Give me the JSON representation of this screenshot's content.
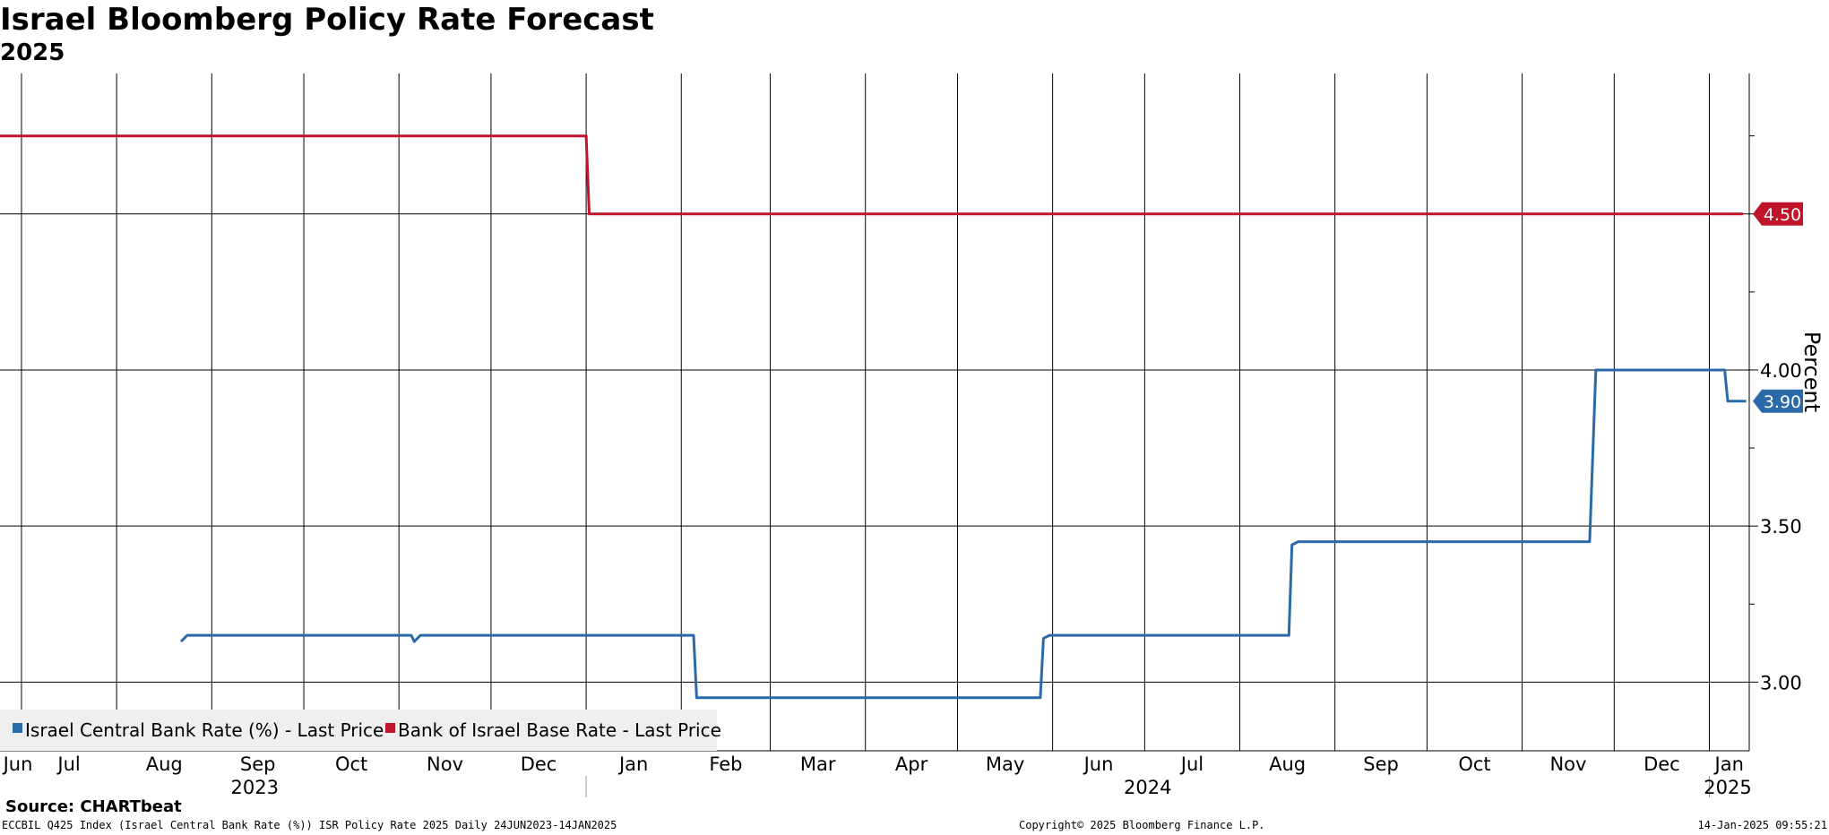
{
  "header": {
    "title": "Israel Bloomberg Policy Rate Forecast",
    "subtitle": "2025"
  },
  "footer": {
    "source": "Source: CHARTbeat",
    "left": "ECCBIL Q425 Index (Israel Central Bank Rate (%)) ISR Policy Rate 2025  Daily 24JUN2023-14JAN2025",
    "center": "Copyright© 2025 Bloomberg Finance L.P.",
    "right": "14-Jan-2025 09:55:21"
  },
  "colors": {
    "series_blue": "#2b6aa8",
    "series_red": "#c0142a",
    "grid": "#000000",
    "legend_bg": "#efefef"
  },
  "chart_data": {
    "type": "line",
    "title": "Israel Bloomberg Policy Rate Forecast",
    "subtitle": "2025",
    "ylabel": "Percent",
    "ylim": [
      2.78,
      4.95
    ],
    "xlim": [
      "2023-06-24",
      "2025-01-14"
    ],
    "y_axis_position": "right",
    "y_ticks": [
      "3.00",
      "3.50",
      "4.00",
      "4.50"
    ],
    "x_ticks": [
      {
        "label": "Jun",
        "date": "2023-06-24"
      },
      {
        "label": "Jul",
        "date": "2023-07-01"
      },
      {
        "label": "Aug",
        "date": "2023-08-01"
      },
      {
        "label": "Sep",
        "date": "2023-09-01"
      },
      {
        "label": "Oct",
        "date": "2023-10-01"
      },
      {
        "label": "Nov",
        "date": "2023-11-01"
      },
      {
        "label": "Dec",
        "date": "2023-12-01"
      },
      {
        "label": "Jan",
        "date": "2024-01-01"
      },
      {
        "label": "Feb",
        "date": "2024-02-01"
      },
      {
        "label": "Mar",
        "date": "2024-03-01"
      },
      {
        "label": "Apr",
        "date": "2024-04-01"
      },
      {
        "label": "May",
        "date": "2024-05-01"
      },
      {
        "label": "Jun",
        "date": "2024-06-01"
      },
      {
        "label": "Jul",
        "date": "2024-07-01"
      },
      {
        "label": "Aug",
        "date": "2024-08-01"
      },
      {
        "label": "Sep",
        "date": "2024-09-01"
      },
      {
        "label": "Oct",
        "date": "2024-10-01"
      },
      {
        "label": "Nov",
        "date": "2024-11-01"
      },
      {
        "label": "Dec",
        "date": "2024-12-01"
      },
      {
        "label": "Jan",
        "date": "2025-01-01"
      }
    ],
    "x_year_labels": [
      {
        "label": "2023",
        "date": "2023-09-15"
      },
      {
        "label": "2024",
        "date": "2024-07-02"
      },
      {
        "label": "2025",
        "date": "2025-01-07"
      }
    ],
    "x_year_dividers": [
      "2024-01-01",
      "2025-01-01"
    ],
    "grid": true,
    "legend_position": "bottom-left",
    "series": [
      {
        "name": "Israel Central Bank Rate (%) - Last Price",
        "color": "#2b6aa8",
        "last_value_label": "3.90",
        "points": [
          [
            "2023-08-22",
            3.13
          ],
          [
            "2023-08-24",
            3.15
          ],
          [
            "2023-11-05",
            3.15
          ],
          [
            "2023-11-06",
            3.13
          ],
          [
            "2023-11-08",
            3.15
          ],
          [
            "2024-02-05",
            3.15
          ],
          [
            "2024-02-06",
            2.95
          ],
          [
            "2024-05-28",
            2.95
          ],
          [
            "2024-05-29",
            3.14
          ],
          [
            "2024-05-31",
            3.15
          ],
          [
            "2024-08-17",
            3.15
          ],
          [
            "2024-08-18",
            3.44
          ],
          [
            "2024-08-20",
            3.45
          ],
          [
            "2024-11-23",
            3.45
          ],
          [
            "2024-11-25",
            4.0
          ],
          [
            "2025-01-06",
            4.0
          ],
          [
            "2025-01-07",
            3.9
          ],
          [
            "2025-01-13",
            3.9
          ]
        ]
      },
      {
        "name": "Bank of Israel Base Rate - Last Price",
        "color": "#c0142a",
        "last_value_label": "4.50",
        "points": [
          [
            "2023-06-24",
            4.75
          ],
          [
            "2024-01-01",
            4.75
          ],
          [
            "2024-01-02",
            4.5
          ],
          [
            "2025-01-12",
            4.5
          ]
        ]
      }
    ]
  }
}
